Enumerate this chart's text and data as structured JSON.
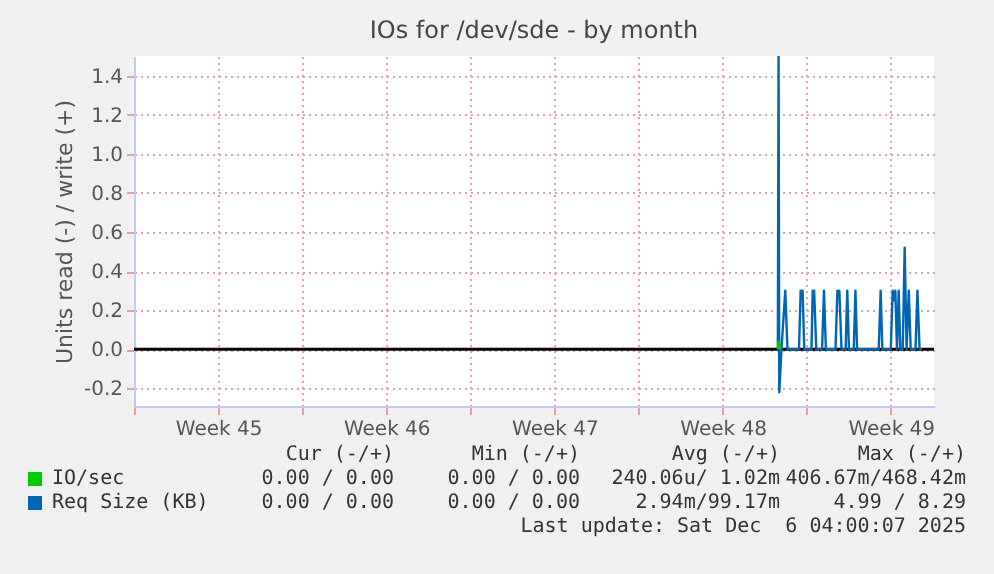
{
  "chart_data": {
    "type": "line",
    "title": "IOs for /dev/sde - by month",
    "ylabel": "Units read (-) / write (+)",
    "xlim": [
      "2025-11-03T00:00",
      "2025-12-06T07:12"
    ],
    "xticks": [
      {
        "value": "2025-11-03T00:00",
        "label": null
      },
      {
        "value": "2025-11-06T12:00",
        "label": "Week 45"
      },
      {
        "value": "2025-11-10T00:00",
        "label": null
      },
      {
        "value": "2025-11-13T12:00",
        "label": "Week 46"
      },
      {
        "value": "2025-11-17T00:00",
        "label": null
      },
      {
        "value": "2025-11-20T12:00",
        "label": "Week 47"
      },
      {
        "value": "2025-11-24T00:00",
        "label": null
      },
      {
        "value": "2025-11-27T12:00",
        "label": "Week 48"
      },
      {
        "value": "2025-12-01T00:00",
        "label": null
      },
      {
        "value": "2025-12-04T12:00",
        "label": "Week 49"
      }
    ],
    "ylim": [
      -0.29,
      1.5
    ],
    "yticks": [
      -0.2,
      {
        "value": 0,
        "label": "0.0"
      },
      0.2,
      0.4,
      0.6,
      0.8,
      {
        "value": 1,
        "label": "1.0"
      },
      1.2,
      1.4
    ],
    "grid": true,
    "legend": "bottom",
    "line_style": "solid",
    "marker": "none",
    "ref_lines": [
      {
        "axis": "y",
        "value": 0,
        "color": "#000000"
      }
    ],
    "series": [
      {
        "name": "IO/sec",
        "color": "#00cc00",
        "x": [
          "2025-11-29T19:12",
          "2025-11-29T19:55",
          "2025-11-29T21:36"
        ],
        "values": [
          0,
          0.04,
          0
        ]
      },
      {
        "name": "Req Size (KB)",
        "color": "#0066b3",
        "x": [
          "2025-11-29T19:12",
          "2025-11-29T19:55",
          "2025-11-29T20:38",
          "2025-11-29T22:48",
          "2025-11-30T02:38",
          "2025-11-30T04:48",
          "2025-11-30T16:19",
          "2025-11-30T18:00",
          "2025-11-30T19:12",
          "2025-11-30T19:55",
          "2025-11-30T21:36",
          "2025-12-01T04:48",
          "2025-12-01T06:00",
          "2025-12-01T06:43",
          "2025-12-01T07:26",
          "2025-12-01T09:36",
          "2025-12-01T15:22",
          "2025-12-01T17:17",
          "2025-12-01T19:12",
          "2025-12-02T04:48",
          "2025-12-02T06:43",
          "2025-12-02T07:41",
          "2025-12-02T08:38",
          "2025-12-02T10:48",
          "2025-12-02T14:53",
          "2025-12-02T16:34",
          "2025-12-02T18:14",
          "2025-12-02T23:02",
          "2025-12-03T00:43",
          "2025-12-03T02:24",
          "2025-12-04T00:00",
          "2025-12-04T01:55",
          "2025-12-04T03:36",
          "2025-12-04T12:00",
          "2025-12-04T13:55",
          "2025-12-04T15:07",
          "2025-12-04T16:34",
          "2025-12-04T18:14",
          "2025-12-04T19:55",
          "2025-12-04T21:36",
          "2025-12-05T00:00",
          "2025-12-05T01:55",
          "2025-12-05T03:50",
          "2025-12-05T06:00",
          "2025-12-05T07:55",
          "2025-12-05T12:43",
          "2025-12-05T14:38",
          "2025-12-05T16:48",
          "2025-12-05T19:12"
        ],
        "values": [
          0,
          1.5,
          -0.22,
          0,
          0.3,
          0,
          0,
          0.3,
          0.28,
          0.3,
          0,
          0,
          0.3,
          0.25,
          0.3,
          0,
          0,
          0.3,
          0,
          0,
          0.3,
          0.28,
          0.3,
          0,
          0,
          0.3,
          0,
          0,
          0.3,
          0,
          0,
          0.3,
          0,
          0,
          0.3,
          0.25,
          0.3,
          0,
          0.3,
          0,
          0,
          0.52,
          0,
          0.3,
          0,
          0,
          0.3,
          0,
          0
        ]
      }
    ],
    "annotations": [
      "Cur (-/+)",
      "Min (-/+)",
      "Avg (-/+)",
      "Max (-/+)",
      "0.00 / 0.00",
      "0.00 / 0.00",
      "240.06u/ 1.02m",
      "406.67m/468.42m",
      "0.00 / 0.00",
      "0.00 / 0.00",
      "2.94m/99.17m",
      "4.99 / 8.29",
      "Last update: Sat Dec  6 04:00:07 2025"
    ]
  }
}
